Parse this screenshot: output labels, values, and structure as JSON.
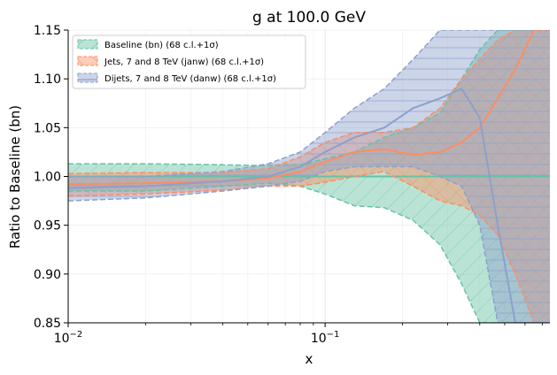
{
  "chart_data": {
    "type": "line",
    "title": "g at 100.0 GeV",
    "xlabel": "x",
    "ylabel": "Ratio to Baseline (bn)",
    "xscale": "log",
    "xlim": [
      0.01,
      0.75
    ],
    "ylim": [
      0.85,
      1.15
    ],
    "xtick_labels": [
      {
        "value": 0.01,
        "base": "10",
        "exp": "−2"
      },
      {
        "value": 0.1,
        "base": "10",
        "exp": "−1"
      }
    ],
    "yticks": [
      "0.85",
      "0.90",
      "0.95",
      "1.00",
      "1.05",
      "1.10",
      "1.15"
    ],
    "legend_position": "top-left",
    "grid": true,
    "series": [
      {
        "name": "Baseline (bn) (68 c.l.+1σ)",
        "color": "#66c2a5",
        "x": [
          0.01,
          0.02,
          0.04,
          0.06,
          0.08,
          0.1,
          0.13,
          0.17,
          0.22,
          0.28,
          0.34,
          0.4,
          0.47,
          0.55,
          0.65,
          0.75
        ],
        "central": [
          1.0,
          1.0,
          1.0,
          1.0,
          1.0,
          1.0,
          1.0,
          1.0,
          1.0,
          1.0,
          1.0,
          1.0,
          1.0,
          1.0,
          1.0,
          1.0
        ],
        "upper": [
          1.013,
          1.013,
          1.012,
          1.011,
          1.012,
          1.018,
          1.025,
          1.04,
          1.05,
          1.065,
          1.1,
          1.13,
          1.15,
          1.15,
          1.15,
          1.15
        ],
        "lower": [
          0.985,
          0.985,
          0.99,
          0.993,
          0.99,
          0.982,
          0.97,
          0.968,
          0.955,
          0.93,
          0.89,
          0.85,
          0.85,
          0.85,
          0.85,
          0.85
        ],
        "upper_dash": [
          1.013,
          1.013,
          1.012,
          1.011,
          1.012,
          1.018,
          1.025,
          1.04,
          1.05,
          1.065,
          1.1,
          1.13,
          1.15,
          1.15,
          1.15,
          1.15
        ],
        "lower_dash": [
          0.985,
          0.985,
          0.99,
          0.993,
          0.99,
          0.982,
          0.97,
          0.968,
          0.955,
          0.93,
          0.89,
          0.85,
          0.85,
          0.85,
          0.85,
          0.85
        ]
      },
      {
        "name": "Jets, 7 and 8 TeV (janw) (68 c.l.+1σ)",
        "color": "#fc8d62",
        "x": [
          0.01,
          0.02,
          0.04,
          0.06,
          0.08,
          0.1,
          0.13,
          0.17,
          0.22,
          0.28,
          0.34,
          0.4,
          0.47,
          0.55,
          0.65,
          0.75
        ],
        "central": [
          0.992,
          0.993,
          0.995,
          0.998,
          1.005,
          1.015,
          1.025,
          1.028,
          1.022,
          1.025,
          1.035,
          1.05,
          1.08,
          1.11,
          1.15,
          1.15
        ],
        "upper": [
          1.003,
          1.004,
          1.004,
          1.008,
          1.02,
          1.035,
          1.045,
          1.045,
          1.05,
          1.07,
          1.1,
          1.12,
          1.14,
          1.15,
          1.15,
          1.15
        ],
        "lower": [
          0.98,
          0.982,
          0.986,
          0.99,
          0.99,
          0.994,
          1.0,
          1.005,
          0.99,
          0.975,
          0.97,
          0.96,
          0.94,
          0.9,
          0.85,
          0.85
        ],
        "upper_dash": [
          1.003,
          1.004,
          1.004,
          1.008,
          1.02,
          1.035,
          1.045,
          1.045,
          1.05,
          1.07,
          1.1,
          1.12,
          1.14,
          1.15,
          1.15,
          1.15
        ],
        "lower_dash": [
          0.98,
          0.982,
          0.986,
          0.99,
          0.99,
          0.994,
          1.0,
          1.005,
          0.99,
          0.975,
          0.97,
          0.96,
          0.94,
          0.9,
          0.85,
          0.85
        ]
      },
      {
        "name": "Dijets, 7 and 8 TeV (danw) (68 c.l.+1σ)",
        "color": "#8da0cb",
        "x": [
          0.01,
          0.02,
          0.04,
          0.06,
          0.08,
          0.1,
          0.13,
          0.17,
          0.22,
          0.28,
          0.34,
          0.4,
          0.47,
          0.55,
          0.65,
          0.75
        ],
        "central": [
          0.988,
          0.99,
          0.995,
          1.0,
          1.01,
          1.025,
          1.04,
          1.05,
          1.07,
          1.08,
          1.09,
          1.06,
          0.95,
          0.85,
          0.85,
          0.85
        ],
        "upper": [
          1.0,
          1.0,
          1.005,
          1.013,
          1.025,
          1.045,
          1.07,
          1.09,
          1.12,
          1.15,
          1.15,
          1.15,
          1.15,
          1.15,
          1.15,
          1.15
        ],
        "lower": [
          0.975,
          0.978,
          0.985,
          0.99,
          0.995,
          1.005,
          1.01,
          1.01,
          1.01,
          1.0,
          0.99,
          0.95,
          0.85,
          0.85,
          0.85,
          0.85
        ],
        "upper_dash": [
          1.0,
          1.0,
          1.005,
          1.013,
          1.025,
          1.045,
          1.07,
          1.09,
          1.12,
          1.15,
          1.15,
          1.15,
          1.15,
          1.15,
          1.15,
          1.15
        ],
        "lower_dash": [
          0.975,
          0.978,
          0.985,
          0.99,
          0.995,
          1.005,
          1.01,
          1.01,
          1.01,
          1.0,
          0.99,
          0.95,
          0.85,
          0.85,
          0.85,
          0.85
        ]
      }
    ]
  }
}
